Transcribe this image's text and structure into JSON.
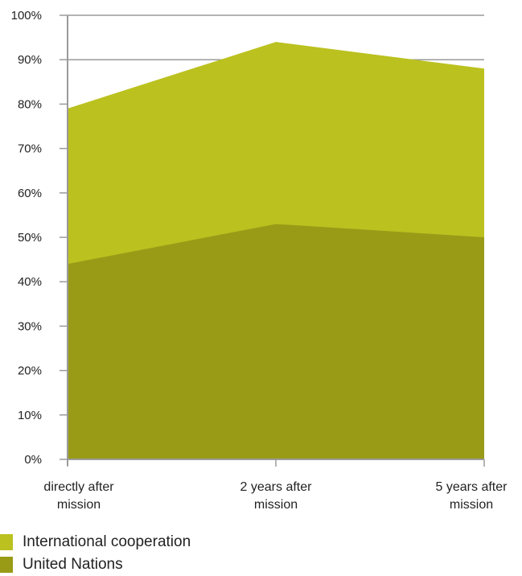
{
  "chart_data": {
    "type": "area",
    "categories": [
      [
        "directly after",
        "mission"
      ],
      [
        "2 years after",
        "mission"
      ],
      [
        "5 years after",
        "mission"
      ]
    ],
    "ylim": [
      0,
      100
    ],
    "y_ticks": [
      "0%",
      "10%",
      "20%",
      "30%",
      "40%",
      "50%",
      "60%",
      "70%",
      "80%",
      "90%",
      "100%"
    ],
    "y_tick_values": [
      0,
      10,
      20,
      30,
      40,
      50,
      60,
      70,
      80,
      90,
      100
    ],
    "grid": "horizontal lines at 90% and 100%",
    "legend_placement": "bottom-left",
    "series": [
      {
        "name": "International cooperation",
        "values": [
          79,
          94,
          88
        ],
        "color": "#bbc11f"
      },
      {
        "name": "United Nations",
        "values": [
          44,
          53,
          50
        ],
        "color": "#999b17"
      }
    ]
  }
}
